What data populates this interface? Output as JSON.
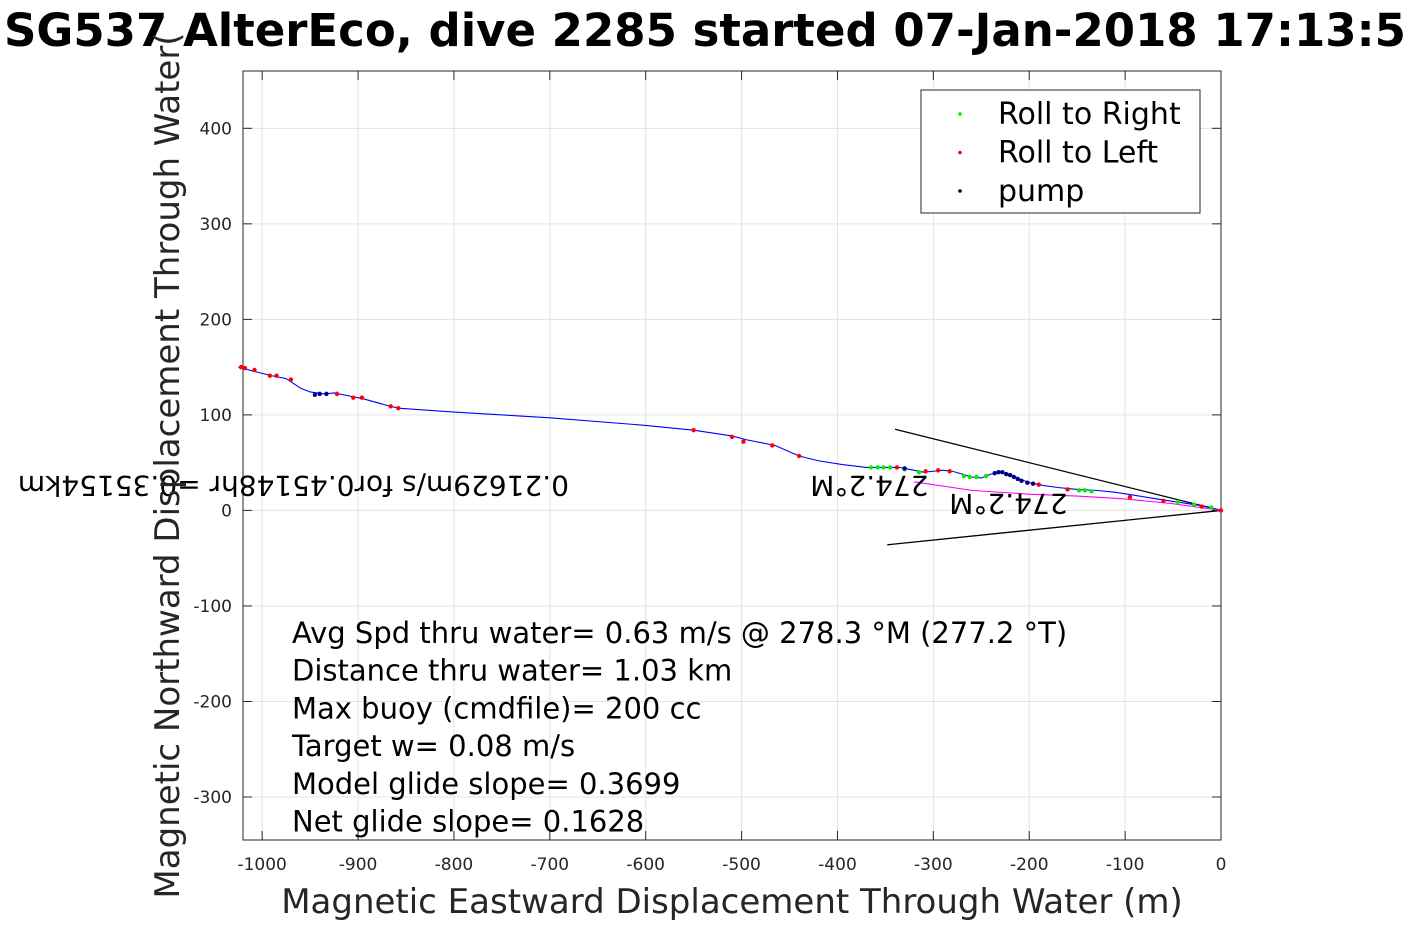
{
  "title": "SG537 AlterEco, dive 2285 started 07-Jan-2018 17:13:5",
  "chart_data": {
    "type": "line",
    "xlabel": "Magnetic Eastward Displacement Through Water (m)",
    "ylabel": "Magnetic Northward Displacement Through Water(",
    "xlim": [
      -1020,
      0
    ],
    "ylim": [
      -345,
      460
    ],
    "grid": true,
    "x_ticks": [
      -1000,
      -900,
      -800,
      -700,
      -600,
      -500,
      -400,
      -300,
      -200,
      -100,
      0
    ],
    "y_ticks": [
      -300,
      -200,
      -100,
      0,
      100,
      200,
      300,
      400
    ],
    "legend": {
      "position": "top-right",
      "entries": [
        {
          "label": "Roll to Right",
          "color": "#00ee00"
        },
        {
          "label": "Roll to Left",
          "color": "#ff0000"
        },
        {
          "label": "pump",
          "color": "#000000"
        }
      ]
    },
    "series": [
      {
        "color": "#0000ff",
        "points": [
          [
            0,
            0
          ],
          [
            -15,
            4
          ],
          [
            -40,
            8
          ],
          [
            -60,
            11
          ],
          [
            -85,
            15
          ],
          [
            -110,
            19
          ],
          [
            -130,
            21
          ],
          [
            -150,
            22
          ],
          [
            -170,
            24
          ],
          [
            -185,
            26
          ],
          [
            -200,
            29
          ],
          [
            -210,
            33
          ],
          [
            -220,
            38
          ],
          [
            -230,
            40
          ],
          [
            -240,
            38
          ],
          [
            -250,
            34
          ],
          [
            -260,
            35
          ],
          [
            -270,
            38
          ],
          [
            -280,
            41
          ],
          [
            -290,
            42
          ],
          [
            -300,
            41
          ],
          [
            -310,
            40
          ],
          [
            -320,
            42
          ],
          [
            -335,
            45
          ],
          [
            -350,
            45
          ],
          [
            -370,
            45
          ],
          [
            -395,
            48
          ],
          [
            -420,
            52
          ],
          [
            -440,
            57
          ],
          [
            -465,
            68
          ],
          [
            -495,
            74
          ],
          [
            -510,
            78
          ],
          [
            -550,
            84
          ],
          [
            -600,
            89
          ],
          [
            -700,
            97
          ],
          [
            -800,
            103
          ],
          [
            -858,
            107
          ],
          [
            -870,
            110
          ],
          [
            -895,
            117
          ],
          [
            -905,
            119
          ],
          [
            -925,
            123
          ],
          [
            -935,
            122
          ],
          [
            -950,
            124
          ],
          [
            -960,
            128
          ],
          [
            -975,
            138
          ],
          [
            -990,
            141
          ],
          [
            -1010,
            146
          ],
          [
            -1025,
            150
          ]
        ]
      },
      {
        "color": "#ff00ff",
        "points": [
          [
            0,
            0
          ],
          [
            -50,
            7
          ],
          [
            -100,
            12
          ],
          [
            -150,
            15
          ],
          [
            -200,
            17
          ],
          [
            -260,
            21
          ],
          [
            -320,
            30
          ]
        ]
      }
    ],
    "markers": {
      "roll_right": [
        [
          -10,
          3
        ],
        [
          -28,
          6
        ],
        [
          -45,
          9
        ],
        [
          -135,
          20
        ],
        [
          -142,
          21
        ],
        [
          -148,
          21
        ],
        [
          -245,
          36
        ],
        [
          -255,
          35
        ],
        [
          -262,
          35
        ],
        [
          -268,
          36
        ],
        [
          -315,
          40
        ],
        [
          -330,
          43
        ],
        [
          -345,
          45
        ],
        [
          -352,
          45
        ],
        [
          -358,
          45
        ],
        [
          -365,
          45
        ]
      ],
      "roll_left": [
        [
          0,
          0
        ],
        [
          -20,
          4
        ],
        [
          -60,
          10
        ],
        [
          -95,
          14
        ],
        [
          -160,
          22
        ],
        [
          -190,
          27
        ],
        [
          -283,
          41
        ],
        [
          -295,
          42
        ],
        [
          -308,
          41
        ],
        [
          -338,
          45
        ],
        [
          -440,
          57
        ],
        [
          -468,
          68
        ],
        [
          -498,
          72
        ],
        [
          -510,
          77
        ],
        [
          -550,
          84
        ],
        [
          -858,
          107
        ],
        [
          -866,
          109
        ],
        [
          -896,
          118
        ],
        [
          -905,
          118
        ],
        [
          -922,
          122
        ],
        [
          -970,
          137
        ],
        [
          -985,
          141
        ],
        [
          -992,
          141
        ],
        [
          -1008,
          147
        ],
        [
          -1018,
          149
        ],
        [
          -1022,
          150
        ]
      ],
      "pump": [
        [
          -196,
          28
        ],
        [
          -202,
          29
        ],
        [
          -208,
          31
        ],
        [
          -212,
          33
        ],
        [
          -216,
          35
        ],
        [
          -220,
          37
        ],
        [
          -224,
          38
        ],
        [
          -228,
          40
        ],
        [
          -232,
          40
        ],
        [
          -236,
          39
        ],
        [
          -330,
          44
        ],
        [
          -940,
          122
        ],
        [
          -945,
          121
        ],
        [
          -933,
          122
        ]
      ]
    },
    "lines": [
      {
        "points": [
          [
            0,
            0
          ],
          [
            -340,
            85
          ]
        ],
        "color": "#000000"
      },
      {
        "points": [
          [
            0,
            0
          ],
          [
            -348,
            -36
          ]
        ],
        "color": "#000000"
      }
    ],
    "annotations_flipped": [
      {
        "text": "274.2°M",
        "x": -160,
        "y": 17
      },
      {
        "text": "0.21629m/s for0.45148hr =0.35154km",
        "x": -680,
        "y": 36
      },
      {
        "text": "274.2°M",
        "x": -305,
        "y": 36
      }
    ],
    "info_text": [
      "Avg Spd thru water=  0.63 m/s @ 278.3 °M (277.2 °T)",
      "Distance thru water=  1.03 km",
      "Max buoy (cmdfile)= 200 cc",
      "Target w= 0.08 m/s",
      "Model glide slope= 0.3699",
      "Net glide slope= 0.1628"
    ]
  }
}
